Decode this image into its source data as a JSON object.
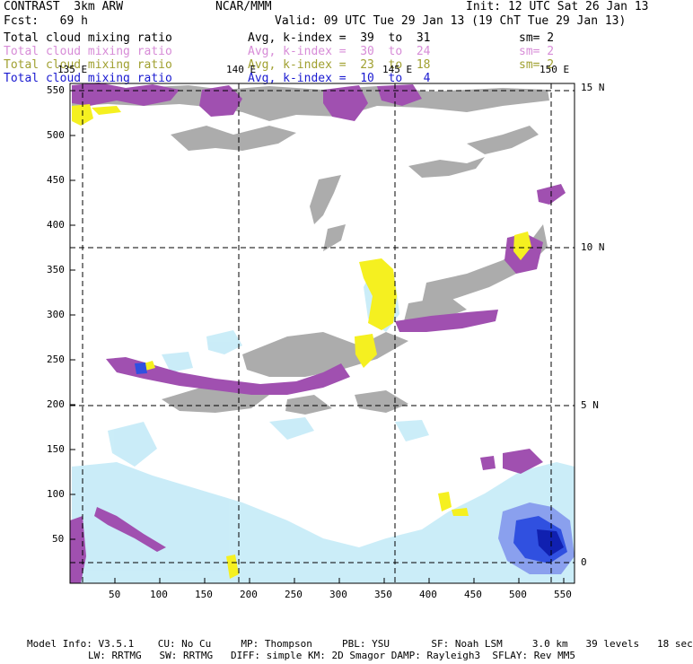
{
  "header": {
    "title": "CONTRAST  3km ARW",
    "center": "NCAR/MMM",
    "init": "Init: 12 UTC Sat 26 Jan 13",
    "fcst": "Fcst:   69 h",
    "valid": "Valid: 09 UTC Tue 29 Jan 13 (19 ChT Tue 29 Jan 13)"
  },
  "legend": [
    {
      "field": "Total cloud mixing ratio",
      "avg": "Avg, k-index =  39  to  31",
      "sm": "sm= 2",
      "color": "#000000"
    },
    {
      "field": "Total cloud mixing ratio",
      "avg": "Avg, k-index =  30  to  24",
      "sm": "sm= 2",
      "color": "#d78cd7"
    },
    {
      "field": "Total cloud mixing ratio",
      "avg": "Avg, k-index =  23  to  18",
      "sm": "sm= 2",
      "color": "#a0a030"
    },
    {
      "field": "Total cloud mixing ratio",
      "avg": "Avg, k-index =  10  to   4",
      "sm": "",
      "color": "#1a1ad0"
    }
  ],
  "map": {
    "lon_labels": [
      "135 E",
      "140 E",
      "145 E",
      "150 E"
    ],
    "lat_labels": [
      "15 N",
      "10 N",
      "5 N",
      "0"
    ],
    "x_ticks": [
      "50",
      "100",
      "150",
      "200",
      "250",
      "300",
      "350",
      "400",
      "450",
      "500",
      "550"
    ],
    "y_ticks": [
      "550",
      "500",
      "450",
      "400",
      "350",
      "300",
      "250",
      "200",
      "150",
      "100",
      "50"
    ]
  },
  "footer": {
    "line1": "Model Info: V3.5.1    CU: No Cu     MP: Thompson     PBL: YSU       SF: Noah LSM     3.0 km   39 levels   18 sec",
    "line2": "LW: RRTMG   SW: RRTMG   DIFF: simple KM: 2D Smagor DAMP: Rayleigh3  SFLAY: Rev MM5"
  },
  "colors": {
    "cloud_grey": "#a8a8a8",
    "cloud_purple": "#a050b0",
    "cloud_yellow": "#f5f020",
    "cloud_lightblue": "#c8ecf8",
    "cloud_blue": "#3050e0"
  }
}
